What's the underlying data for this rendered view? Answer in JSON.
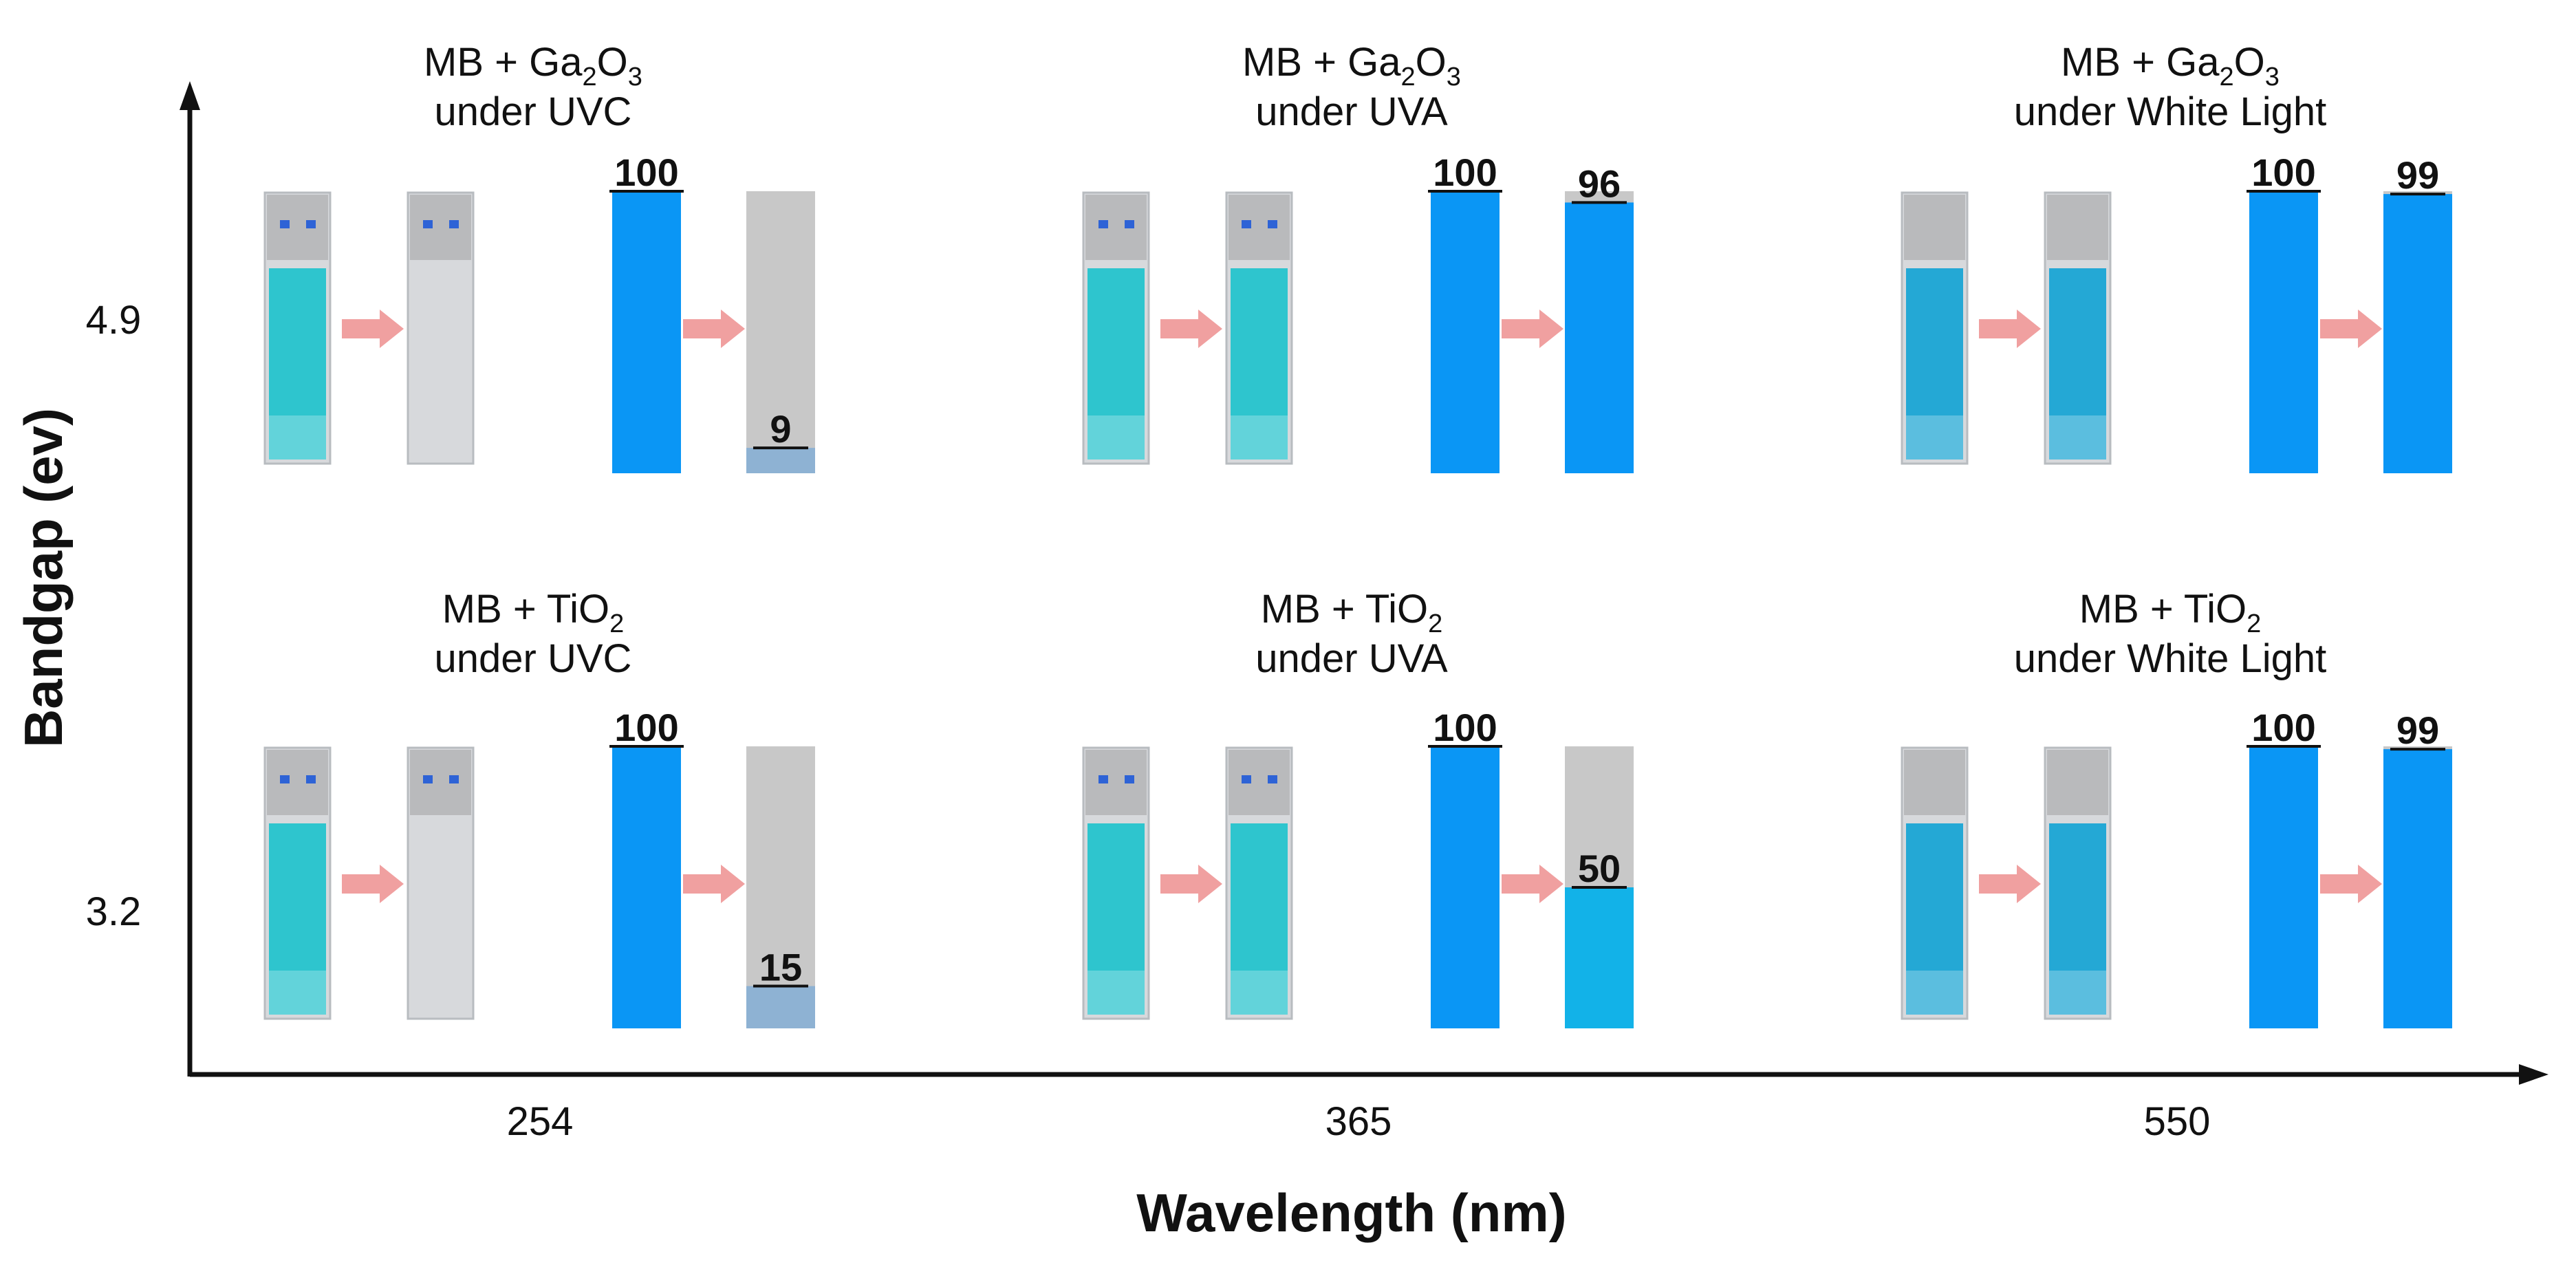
{
  "axes": {
    "x_title": "Wavelength (nm)",
    "y_title": "Bandgap (ev)",
    "x_ticks": [
      "254",
      "365",
      "550"
    ],
    "y_ticks": [
      "4.9",
      "3.2"
    ]
  },
  "colors": {
    "bar_initial": "#0a96f5",
    "bar_after_white_light": "#0a96f5",
    "bar_after_uva_tio2": "#12b2e8",
    "bar_after_uvc": "#8eb2d3",
    "bar_background": "#c8c8c8",
    "arrow": "#f0a0a0",
    "solution_cyan": "#1fc3cc",
    "solution_blue": "#15a4d4",
    "cuvette_glass": "#d7d9dc",
    "cap": "#b9babc",
    "marker": "#2e63d6",
    "axis": "#111111"
  },
  "panels": [
    {
      "id": "ga2o3-uvc",
      "material": "Ga",
      "material_sub1": "2",
      "material_mid": "O",
      "material_sub2": "3",
      "condition": "under UVC",
      "initial": "100",
      "final": "9",
      "initial_value": 100,
      "final_value": 9,
      "after_bar": "bar_after_uvc",
      "before_solution": "solution_cyan",
      "after_solution": "cuvette_glass",
      "markers": true
    },
    {
      "id": "ga2o3-uva",
      "material": "Ga",
      "material_sub1": "2",
      "material_mid": "O",
      "material_sub2": "3",
      "condition": "under UVA",
      "initial": "100",
      "final": "96",
      "initial_value": 100,
      "final_value": 96,
      "after_bar": "bar_initial",
      "before_solution": "solution_cyan",
      "after_solution": "solution_cyan",
      "markers": true
    },
    {
      "id": "ga2o3-white",
      "material": "Ga",
      "material_sub1": "2",
      "material_mid": "O",
      "material_sub2": "3",
      "condition": "under White Light",
      "initial": "100",
      "final": "99",
      "initial_value": 100,
      "final_value": 99,
      "after_bar": "bar_after_white_light",
      "before_solution": "solution_blue",
      "after_solution": "solution_blue",
      "markers": false
    },
    {
      "id": "tio2-uvc",
      "material": "TiO",
      "material_sub1": "2",
      "material_mid": "",
      "material_sub2": "",
      "condition": "under UVC",
      "initial": "100",
      "final": "15",
      "initial_value": 100,
      "final_value": 15,
      "after_bar": "bar_after_uvc",
      "before_solution": "solution_cyan",
      "after_solution": "cuvette_glass",
      "markers": true
    },
    {
      "id": "tio2-uva",
      "material": "TiO",
      "material_sub1": "2",
      "material_mid": "",
      "material_sub2": "",
      "condition": "under UVA",
      "initial": "100",
      "final": "50",
      "initial_value": 100,
      "final_value": 50,
      "after_bar": "bar_after_uva_tio2",
      "before_solution": "solution_cyan",
      "after_solution": "solution_cyan",
      "markers": true
    },
    {
      "id": "tio2-white",
      "material": "TiO",
      "material_sub1": "2",
      "material_mid": "",
      "material_sub2": "",
      "condition": "under White Light",
      "initial": "100",
      "final": "99",
      "initial_value": 100,
      "final_value": 99,
      "after_bar": "bar_after_white_light",
      "before_solution": "solution_blue",
      "after_solution": "solution_blue",
      "markers": false
    }
  ],
  "caption_prefix": "MB + "
}
